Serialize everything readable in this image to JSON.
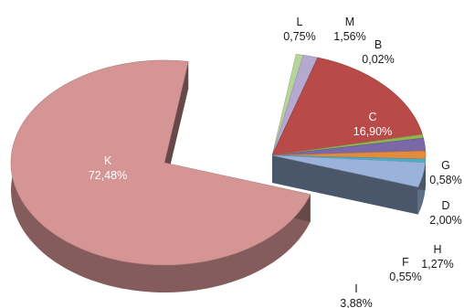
{
  "chart_data": {
    "type": "pie",
    "title": "",
    "legend": "none",
    "slices": [
      {
        "label": "K",
        "value": 72.48,
        "display": "72,48%",
        "color": "#d59595"
      },
      {
        "label": "L",
        "value": 0.75,
        "display": "0,75%",
        "color": "#b7d49b"
      },
      {
        "label": "M",
        "value": 1.56,
        "display": "1,56%",
        "color": "#b6a9cf"
      },
      {
        "label": "B",
        "value": 0.02,
        "display": "0,02%",
        "color": "#3f6aa6"
      },
      {
        "label": "C",
        "value": 16.9,
        "display": "16,90%",
        "color": "#b84a48"
      },
      {
        "label": "G",
        "value": 0.58,
        "display": "0,58%",
        "color": "#8fb552"
      },
      {
        "label": "D",
        "value": 2.0,
        "display": "2,00%",
        "color": "#7b68a6"
      },
      {
        "label": "H",
        "value": 1.27,
        "display": "1,27%",
        "color": "#e48a3b"
      },
      {
        "label": "F",
        "value": 0.55,
        "display": "0,55%",
        "color": "#4bacc6"
      },
      {
        "label": "I",
        "value": 3.88,
        "display": "3,88%",
        "color": "#9bb3db"
      }
    ]
  }
}
